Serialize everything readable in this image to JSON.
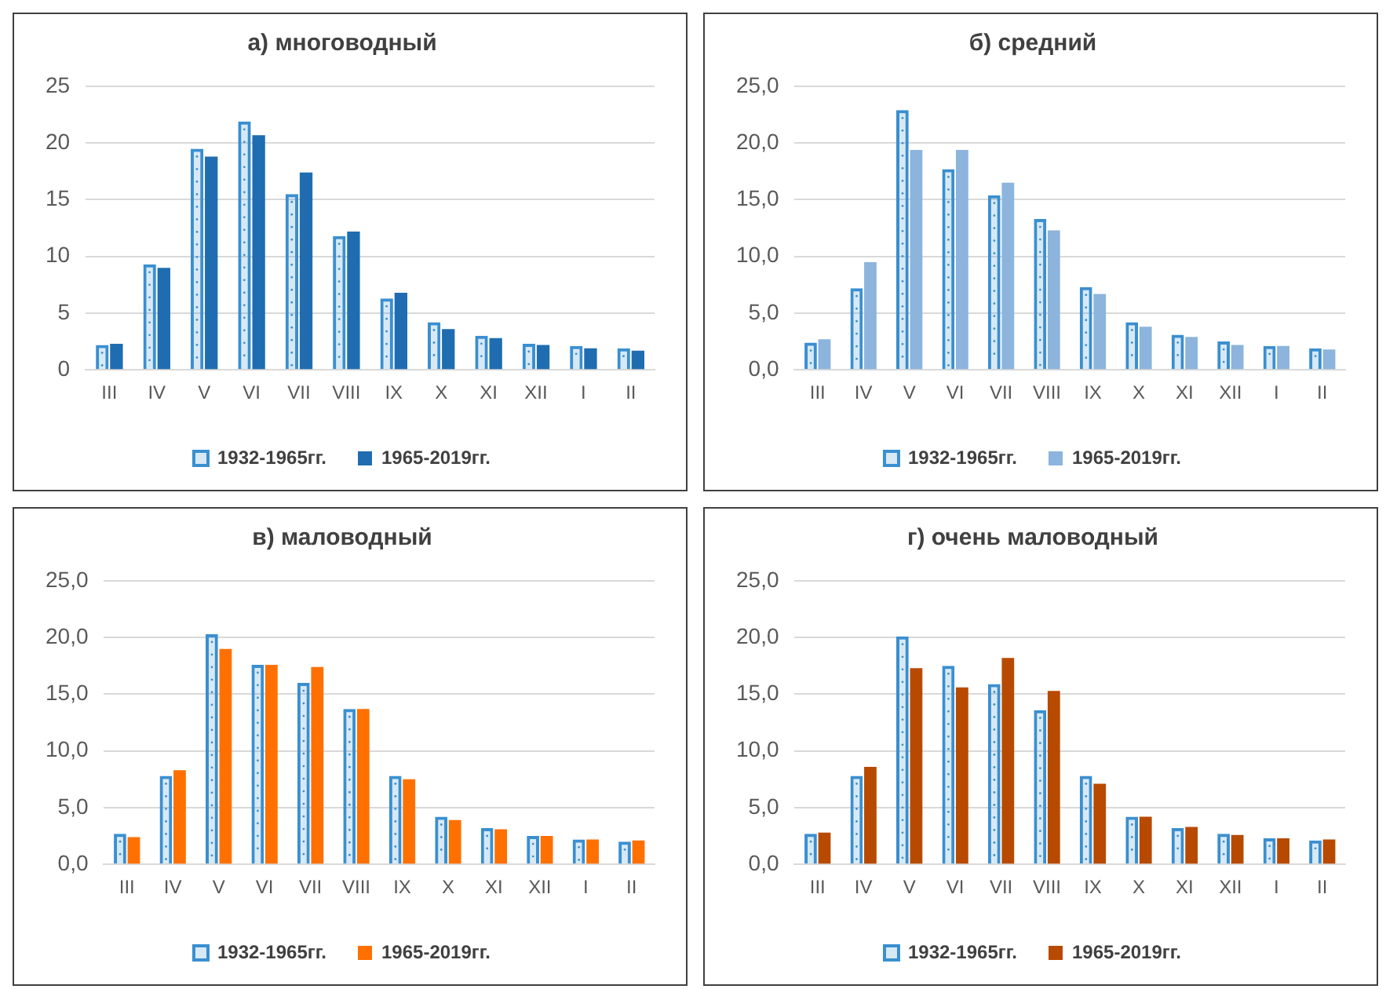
{
  "chart_data": [
    {
      "type": "bar",
      "title": "а) многоводный",
      "categories": [
        "III",
        "IV",
        "V",
        "VI",
        "VII",
        "VIII",
        "IX",
        "X",
        "XI",
        "XII",
        "I",
        "II"
      ],
      "series": [
        {
          "name": "1932-1965гг.",
          "color": "#3a8fd0",
          "values": [
            2.2,
            9.3,
            19.5,
            21.9,
            15.5,
            11.8,
            6.3,
            4.2,
            3.0,
            2.3,
            2.1,
            1.9
          ]
        },
        {
          "name": "1965-2019гг.",
          "color": "#1f6db0",
          "values": [
            2.3,
            9.0,
            18.8,
            20.7,
            17.4,
            12.2,
            6.8,
            3.6,
            2.8,
            2.2,
            1.9,
            1.7
          ]
        }
      ],
      "ylim": [
        0,
        25
      ],
      "yticks": [
        0,
        5,
        10,
        15,
        20,
        25
      ],
      "grid": "y",
      "legend": "bottom"
    },
    {
      "type": "bar",
      "title": "б) средний",
      "categories": [
        "III",
        "IV",
        "V",
        "VI",
        "VII",
        "VIII",
        "IX",
        "X",
        "XI",
        "XII",
        "I",
        "II"
      ],
      "series": [
        {
          "name": "1932-1965гг.",
          "color": "#3a8fd0",
          "values": [
            2.4,
            7.2,
            22.9,
            17.7,
            15.4,
            13.3,
            7.3,
            4.2,
            3.1,
            2.5,
            2.1,
            1.9
          ]
        },
        {
          "name": "1965-2019гг.",
          "color": "#8cb4dc",
          "values": [
            2.7,
            9.5,
            19.4,
            19.4,
            16.5,
            12.3,
            6.7,
            3.8,
            2.9,
            2.2,
            2.1,
            1.8
          ]
        }
      ],
      "ylim": [
        0,
        25
      ],
      "yticks": [
        {
          "value": 0,
          "label": "0,0"
        },
        {
          "value": 5,
          "label": "5,0"
        },
        {
          "value": 10,
          "label": "10,0"
        },
        {
          "value": 15,
          "label": "15,0"
        },
        {
          "value": 20,
          "label": "20,0"
        },
        {
          "value": 25,
          "label": "25,0"
        }
      ],
      "grid": "y",
      "legend": "bottom"
    },
    {
      "type": "bar",
      "title": "в) маловодный",
      "categories": [
        "III",
        "IV",
        "V",
        "VI",
        "VII",
        "VIII",
        "IX",
        "X",
        "XI",
        "XII",
        "I",
        "II"
      ],
      "series": [
        {
          "name": "1932-1965гг.",
          "color": "#3a8fd0",
          "values": [
            2.7,
            7.8,
            20.3,
            17.6,
            16.0,
            13.7,
            7.8,
            4.2,
            3.2,
            2.5,
            2.2,
            2.0
          ]
        },
        {
          "name": "1965-2019гг.",
          "color": "#ff7000",
          "values": [
            2.4,
            8.3,
            19.0,
            17.6,
            17.4,
            13.7,
            7.5,
            3.9,
            3.1,
            2.5,
            2.2,
            2.1
          ]
        }
      ],
      "ylim": [
        0,
        25
      ],
      "yticks": [
        {
          "value": 0,
          "label": "0,0"
        },
        {
          "value": 5,
          "label": "5,0"
        },
        {
          "value": 10,
          "label": "10,0"
        },
        {
          "value": 15,
          "label": "15,0"
        },
        {
          "value": 20,
          "label": "20,0"
        },
        {
          "value": 25,
          "label": "25,0"
        }
      ],
      "grid": "y",
      "legend": "bottom"
    },
    {
      "type": "bar",
      "title": "г) очень маловодный",
      "categories": [
        "III",
        "IV",
        "V",
        "VI",
        "VII",
        "VIII",
        "IX",
        "X",
        "XI",
        "XII",
        "I",
        "II"
      ],
      "series": [
        {
          "name": "1932-1965гг.",
          "color": "#3a8fd0",
          "values": [
            2.7,
            7.8,
            20.1,
            17.5,
            15.9,
            13.6,
            7.8,
            4.2,
            3.2,
            2.7,
            2.3,
            2.1
          ]
        },
        {
          "name": "1965-2019гг.",
          "color": "#b84a00",
          "values": [
            2.8,
            8.6,
            17.3,
            15.6,
            18.2,
            15.3,
            7.1,
            4.2,
            3.3,
            2.6,
            2.3,
            2.2
          ]
        }
      ],
      "ylim": [
        0,
        25
      ],
      "yticks": [
        {
          "value": 0,
          "label": "0,0"
        },
        {
          "value": 5,
          "label": "5,0"
        },
        {
          "value": 10,
          "label": "10,0"
        },
        {
          "value": 15,
          "label": "15,0"
        },
        {
          "value": 20,
          "label": "20,0"
        },
        {
          "value": 25,
          "label": "25,0"
        }
      ],
      "grid": "y",
      "legend": "bottom"
    }
  ]
}
